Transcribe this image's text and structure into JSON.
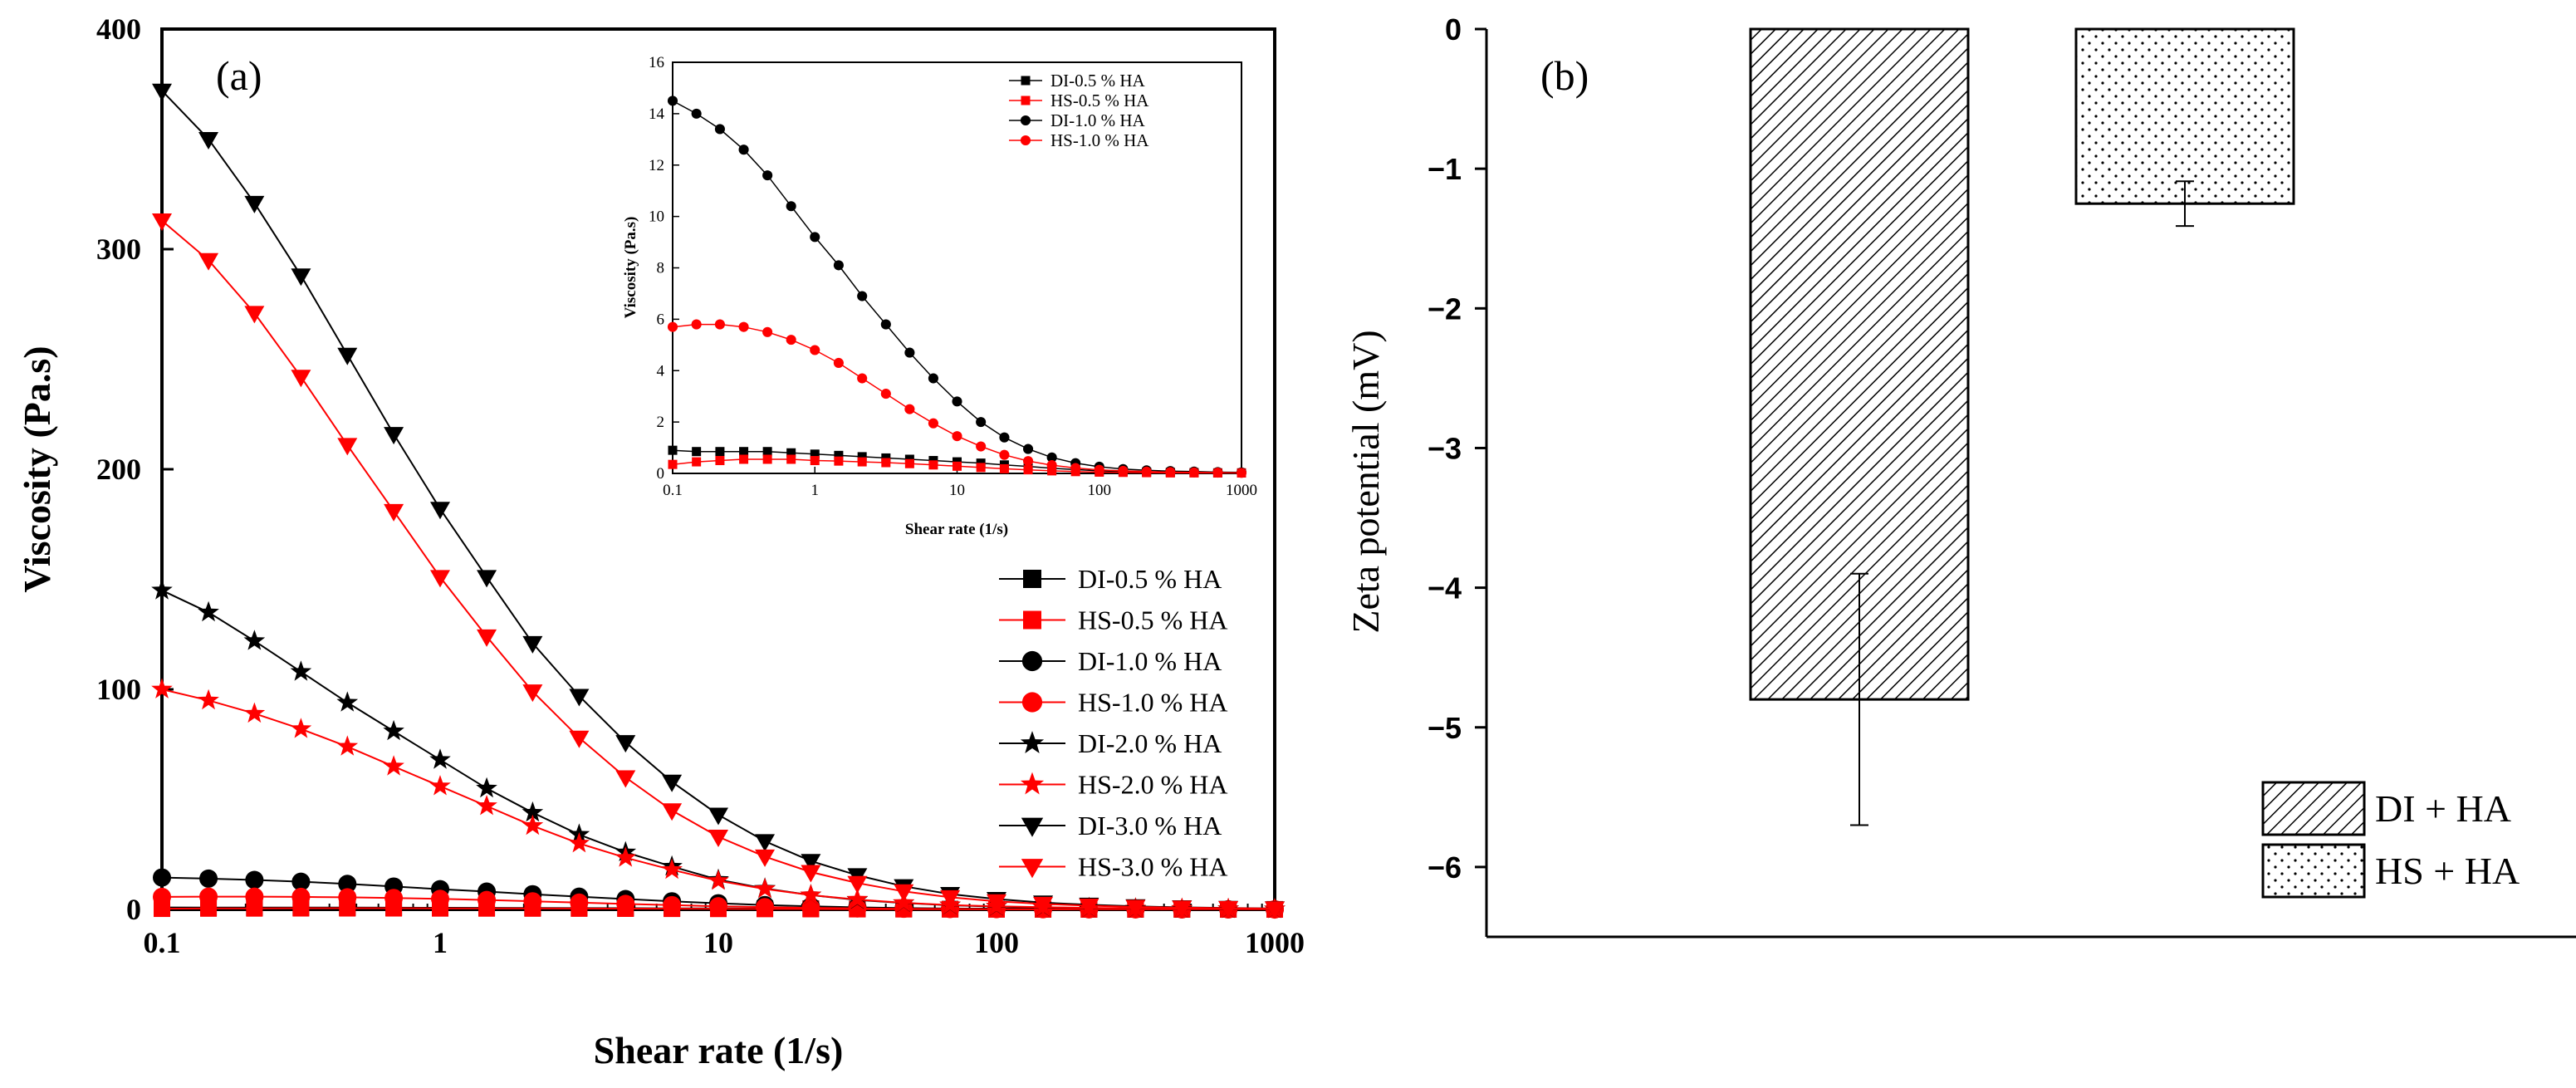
{
  "colors": {
    "di": "#000000",
    "hs": "#ff0000"
  },
  "chart_data": [
    {
      "type": "line",
      "panel_label": "(a)",
      "xlabel": "Shear rate (1/s)",
      "ylabel": "Viscosity (Pa.s)",
      "xscale": "log",
      "xlim": [
        0.1,
        1000
      ],
      "ylim": [
        0,
        400
      ],
      "xticks": [
        0.1,
        1,
        10,
        100,
        1000
      ],
      "xtick_labels": [
        "0.1",
        "1",
        "10",
        "100",
        "1000"
      ],
      "yticks": [
        0,
        100,
        200,
        300,
        400
      ],
      "ytick_labels": [
        "0",
        "100",
        "200",
        "300",
        "400"
      ],
      "legend_position": "center-right",
      "x": [
        0.1,
        0.147,
        0.215,
        0.316,
        0.464,
        0.681,
        1,
        1.47,
        2.15,
        3.16,
        4.64,
        6.81,
        10,
        14.7,
        21.5,
        31.6,
        46.4,
        68.1,
        100,
        147,
        215,
        316,
        464,
        681,
        1000
      ],
      "series": [
        {
          "name": "DI-0.5 % HA",
          "marker": "square",
          "color": "#000000",
          "values": [
            0.9,
            0.85,
            0.85,
            0.85,
            0.85,
            0.8,
            0.75,
            0.7,
            0.65,
            0.6,
            0.55,
            0.5,
            0.45,
            0.4,
            0.33,
            0.27,
            0.2,
            0.15,
            0.1,
            0.07,
            0.05,
            0.04,
            0.03,
            0.02,
            0.02
          ]
        },
        {
          "name": "HS-0.5 % HA",
          "marker": "square",
          "color": "#ff0000",
          "values": [
            0.35,
            0.45,
            0.5,
            0.55,
            0.55,
            0.55,
            0.5,
            0.48,
            0.45,
            0.42,
            0.38,
            0.33,
            0.28,
            0.23,
            0.18,
            0.14,
            0.1,
            0.07,
            0.05,
            0.04,
            0.03,
            0.02,
            0.02,
            0.02,
            0.02
          ]
        },
        {
          "name": "DI-1.0 % HA",
          "marker": "circle",
          "color": "#000000",
          "values": [
            14.5,
            14.0,
            13.4,
            12.6,
            11.6,
            10.4,
            9.2,
            8.1,
            6.9,
            5.8,
            4.7,
            3.7,
            2.8,
            2.0,
            1.4,
            0.95,
            0.62,
            0.4,
            0.26,
            0.17,
            0.12,
            0.09,
            0.07,
            0.05,
            0.04
          ]
        },
        {
          "name": "HS-1.0 % HA",
          "marker": "circle",
          "color": "#ff0000",
          "values": [
            5.7,
            5.8,
            5.8,
            5.7,
            5.5,
            5.2,
            4.8,
            4.3,
            3.7,
            3.1,
            2.5,
            1.95,
            1.45,
            1.05,
            0.72,
            0.48,
            0.32,
            0.21,
            0.14,
            0.1,
            0.07,
            0.05,
            0.04,
            0.03,
            0.02
          ]
        },
        {
          "name": "DI-2.0 % HA",
          "marker": "star",
          "color": "#000000",
          "values": [
            145,
            135,
            122,
            108,
            94,
            81,
            68,
            55,
            44,
            34,
            26,
            19.5,
            13.5,
            9.5,
            6.5,
            4.3,
            2.9,
            1.9,
            1.3,
            0.9,
            0.6,
            0.4,
            0.3,
            0.2,
            0.15
          ]
        },
        {
          "name": "HS-2.0 % HA",
          "marker": "star",
          "color": "#ff0000",
          "values": [
            100,
            95,
            89,
            82,
            74,
            65,
            56,
            47,
            38,
            30,
            23.5,
            18,
            13,
            9.3,
            6.5,
            4.5,
            3.0,
            2.0,
            1.4,
            1.0,
            0.7,
            0.5,
            0.35,
            0.25,
            0.18
          ]
        },
        {
          "name": "DI-3.0 % HA",
          "marker": "triangle-down",
          "color": "#000000",
          "values": [
            372,
            350,
            321,
            288,
            252,
            216,
            182,
            151,
            121,
            97,
            76,
            58,
            43,
            31,
            22,
            15.5,
            10.5,
            7,
            4.7,
            3.1,
            2.1,
            1.4,
            0.95,
            0.65,
            0.45
          ]
        },
        {
          "name": "HS-3.0 % HA",
          "marker": "triangle-down",
          "color": "#ff0000",
          "values": [
            313,
            295,
            271,
            242,
            211,
            181,
            151,
            124,
            99,
            78,
            60,
            45,
            33,
            24,
            17,
            12,
            8.2,
            5.5,
            3.7,
            2.5,
            1.7,
            1.15,
            0.8,
            0.55,
            0.38
          ]
        }
      ],
      "inset": {
        "type": "line",
        "xlabel": "Shear rate (1/s)",
        "ylabel": "Viscosity (Pa.s)",
        "xscale": "log",
        "xlim": [
          0.1,
          1000
        ],
        "ylim": [
          0,
          16
        ],
        "xticks": [
          0.1,
          1,
          10,
          100,
          1000
        ],
        "xtick_labels": [
          "0.1",
          "1",
          "10",
          "100",
          "1000"
        ],
        "yticks": [
          0,
          2,
          4,
          6,
          8,
          10,
          12,
          14,
          16
        ],
        "ytick_labels": [
          "0",
          "2",
          "4",
          "6",
          "8",
          "10",
          "12",
          "14",
          "16"
        ],
        "legend": [
          "DI-0.5 % HA",
          "HS-0.5 % HA",
          "DI-1.0 % HA",
          "HS-1.0 % HA"
        ]
      }
    },
    {
      "type": "bar",
      "panel_label": "(b)",
      "xlabel": "",
      "ylabel": "Zeta potential (mV)",
      "ylim": [
        -6.5,
        0
      ],
      "yticks": [
        0,
        -1,
        -2,
        -3,
        -4,
        -5,
        -6
      ],
      "ytick_labels": [
        "0",
        "−1",
        "−2",
        "−3",
        "−4",
        "−5",
        "−6"
      ],
      "categories": [
        "DI + HA",
        "HS + HA"
      ],
      "values": [
        -4.8,
        -1.25
      ],
      "errors": [
        0.9,
        0.16
      ],
      "patterns": [
        "diagonal-hatch",
        "dots"
      ],
      "legend_position": "bottom-right"
    }
  ]
}
